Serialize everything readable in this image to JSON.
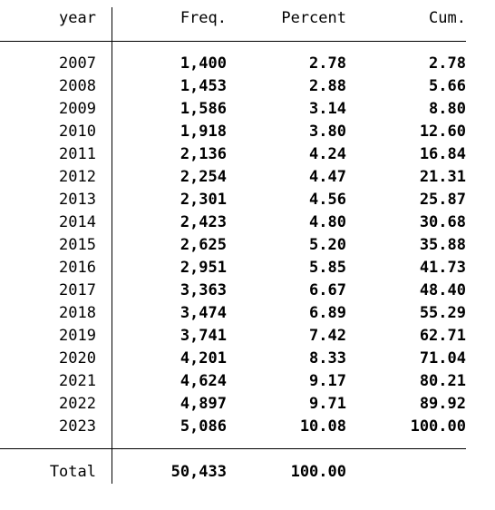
{
  "table": {
    "headers": {
      "year": "year",
      "freq": "Freq.",
      "percent": "Percent",
      "cum": "Cum."
    },
    "rows": [
      {
        "year": "2007",
        "freq": "1,400",
        "percent": "2.78",
        "cum": "2.78"
      },
      {
        "year": "2008",
        "freq": "1,453",
        "percent": "2.88",
        "cum": "5.66"
      },
      {
        "year": "2009",
        "freq": "1,586",
        "percent": "3.14",
        "cum": "8.80"
      },
      {
        "year": "2010",
        "freq": "1,918",
        "percent": "3.80",
        "cum": "12.60"
      },
      {
        "year": "2011",
        "freq": "2,136",
        "percent": "4.24",
        "cum": "16.84"
      },
      {
        "year": "2012",
        "freq": "2,254",
        "percent": "4.47",
        "cum": "21.31"
      },
      {
        "year": "2013",
        "freq": "2,301",
        "percent": "4.56",
        "cum": "25.87"
      },
      {
        "year": "2014",
        "freq": "2,423",
        "percent": "4.80",
        "cum": "30.68"
      },
      {
        "year": "2015",
        "freq": "2,625",
        "percent": "5.20",
        "cum": "35.88"
      },
      {
        "year": "2016",
        "freq": "2,951",
        "percent": "5.85",
        "cum": "41.73"
      },
      {
        "year": "2017",
        "freq": "3,363",
        "percent": "6.67",
        "cum": "48.40"
      },
      {
        "year": "2018",
        "freq": "3,474",
        "percent": "6.89",
        "cum": "55.29"
      },
      {
        "year": "2019",
        "freq": "3,741",
        "percent": "7.42",
        "cum": "62.71"
      },
      {
        "year": "2020",
        "freq": "4,201",
        "percent": "8.33",
        "cum": "71.04"
      },
      {
        "year": "2021",
        "freq": "4,624",
        "percent": "9.17",
        "cum": "80.21"
      },
      {
        "year": "2022",
        "freq": "4,897",
        "percent": "9.71",
        "cum": "89.92"
      },
      {
        "year": "2023",
        "freq": "5,086",
        "percent": "10.08",
        "cum": "100.00"
      }
    ],
    "total": {
      "label": "Total",
      "freq": "50,433",
      "percent": "100.00"
    }
  }
}
